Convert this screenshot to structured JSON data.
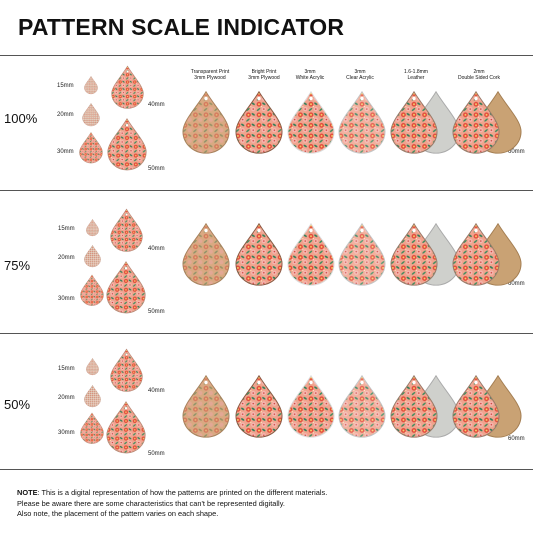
{
  "title": "PATTERN SCALE INDICATOR",
  "sizes": {
    "s15": "15mm",
    "s20": "20mm",
    "s30": "30mm",
    "s40": "40mm",
    "s50": "50mm",
    "s60": "60mm"
  },
  "columns": [
    {
      "line1": "Transparent Print",
      "line2": "3mm Plywood"
    },
    {
      "line1": "Bright Print",
      "line2": "3mm Plywood"
    },
    {
      "line1": "3mm",
      "line2": "White Acrylic"
    },
    {
      "line1": "3mm",
      "line2": "Clear Acrylic"
    },
    {
      "line1": "1.6-1.8mm",
      "line2": "Leather"
    },
    {
      "line1": "2mm",
      "line2": "Double Sided Cork"
    }
  ],
  "rows": [
    {
      "scale": "100%"
    },
    {
      "scale": "75%"
    },
    {
      "scale": "50%"
    }
  ],
  "note": {
    "label": "NOTE",
    "line1": ": This is a digital representation of how the patterns are printed on the different materials.",
    "line2": "Please be aware there are some characteristics that can't be represented digitally.",
    "line3": "Also note, the placement of the pattern varies on each shape."
  },
  "colors": {
    "coral": "#e8604f",
    "pink": "#f1a3a0",
    "green": "#3f8a63",
    "cream": "#f4e3c6",
    "cork": "#c9a274",
    "leather": "#cfd0cc"
  }
}
